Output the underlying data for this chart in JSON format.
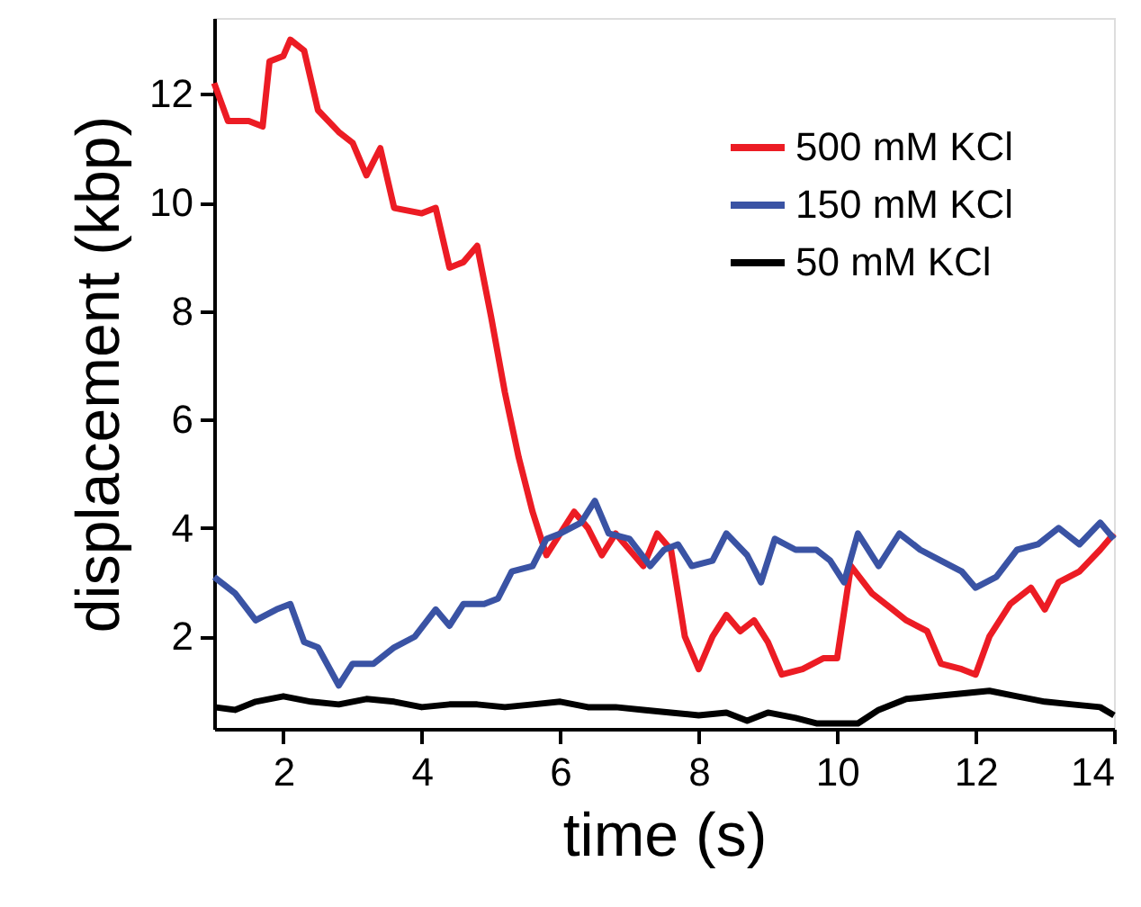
{
  "chart_data": {
    "type": "line",
    "xlabel": "time (s)",
    "ylabel": "displacement (kbp)",
    "xlim": [
      1,
      14
    ],
    "xticks": [
      2,
      4,
      6,
      8,
      10,
      12,
      14
    ],
    "ylim": [
      0.3,
      13.4
    ],
    "yticks": [
      2,
      4,
      6,
      8,
      10,
      12
    ],
    "grid": false,
    "legend": "top right",
    "marker": "none",
    "line_style": "solid",
    "series": [
      {
        "name": "500 mM KCl",
        "color": "#ec1c24",
        "x": [
          1,
          1.2,
          1.5,
          1.7,
          1.8,
          2.0,
          2.1,
          2.3,
          2.5,
          2.8,
          3.0,
          3.2,
          3.4,
          3.6,
          4.0,
          4.2,
          4.4,
          4.6,
          4.8,
          5.0,
          5.2,
          5.4,
          5.6,
          5.8,
          6.0,
          6.2,
          6.4,
          6.6,
          6.8,
          7.0,
          7.2,
          7.4,
          7.6,
          7.8,
          8.0,
          8.2,
          8.4,
          8.6,
          8.8,
          9.0,
          9.2,
          9.5,
          9.8,
          10.0,
          10.2,
          10.5,
          10.8,
          11.0,
          11.3,
          11.5,
          11.8,
          12.0,
          12.2,
          12.5,
          12.8,
          13.0,
          13.2,
          13.5,
          13.8,
          14
        ],
        "values": [
          12.2,
          11.5,
          11.5,
          11.4,
          12.6,
          12.7,
          13.0,
          12.8,
          11.7,
          11.3,
          11.1,
          10.5,
          11.0,
          9.9,
          9.8,
          9.9,
          8.8,
          8.9,
          9.2,
          7.9,
          6.5,
          5.3,
          4.3,
          3.5,
          3.9,
          4.3,
          4.0,
          3.5,
          3.9,
          3.6,
          3.3,
          3.9,
          3.6,
          2.0,
          1.4,
          2.0,
          2.4,
          2.1,
          2.3,
          1.9,
          1.3,
          1.4,
          1.6,
          1.6,
          3.3,
          2.8,
          2.5,
          2.3,
          2.1,
          1.5,
          1.4,
          1.3,
          2.0,
          2.6,
          2.9,
          2.5,
          3.0,
          3.2,
          3.6,
          3.9
        ]
      },
      {
        "name": "150 mM KCl",
        "color": "#3a53a4",
        "x": [
          1,
          1.3,
          1.6,
          1.9,
          2.1,
          2.3,
          2.5,
          2.8,
          3.0,
          3.3,
          3.6,
          3.9,
          4.2,
          4.4,
          4.6,
          4.9,
          5.1,
          5.3,
          5.6,
          5.8,
          6.0,
          6.3,
          6.5,
          6.7,
          7.0,
          7.3,
          7.5,
          7.7,
          7.9,
          8.2,
          8.4,
          8.7,
          8.9,
          9.1,
          9.4,
          9.7,
          9.9,
          10.1,
          10.3,
          10.6,
          10.9,
          11.2,
          11.5,
          11.8,
          12.0,
          12.3,
          12.6,
          12.9,
          13.2,
          13.5,
          13.8,
          14
        ],
        "values": [
          3.1,
          2.8,
          2.3,
          2.5,
          2.6,
          1.9,
          1.8,
          1.1,
          1.5,
          1.5,
          1.8,
          2.0,
          2.5,
          2.2,
          2.6,
          2.6,
          2.7,
          3.2,
          3.3,
          3.8,
          3.9,
          4.1,
          4.5,
          3.9,
          3.8,
          3.3,
          3.6,
          3.7,
          3.3,
          3.4,
          3.9,
          3.5,
          3.0,
          3.8,
          3.6,
          3.6,
          3.4,
          3.0,
          3.9,
          3.3,
          3.9,
          3.6,
          3.4,
          3.2,
          2.9,
          3.1,
          3.6,
          3.7,
          4.0,
          3.7,
          4.1,
          3.8
        ]
      },
      {
        "name": "50 mM KCl",
        "color": "#000000",
        "x": [
          1,
          1.3,
          1.6,
          2.0,
          2.4,
          2.8,
          3.2,
          3.6,
          4.0,
          4.4,
          4.8,
          5.2,
          5.6,
          6.0,
          6.4,
          6.8,
          7.2,
          7.6,
          8.0,
          8.4,
          8.7,
          9.0,
          9.4,
          9.7,
          10.0,
          10.3,
          10.6,
          11.0,
          11.4,
          11.8,
          12.2,
          12.6,
          13.0,
          13.4,
          13.8,
          14
        ],
        "values": [
          0.7,
          0.65,
          0.8,
          0.9,
          0.8,
          0.75,
          0.85,
          0.8,
          0.7,
          0.75,
          0.75,
          0.7,
          0.75,
          0.8,
          0.7,
          0.7,
          0.65,
          0.6,
          0.55,
          0.6,
          0.45,
          0.6,
          0.5,
          0.4,
          0.4,
          0.4,
          0.65,
          0.85,
          0.9,
          0.95,
          1.0,
          0.9,
          0.8,
          0.75,
          0.7,
          0.55
        ]
      }
    ]
  }
}
